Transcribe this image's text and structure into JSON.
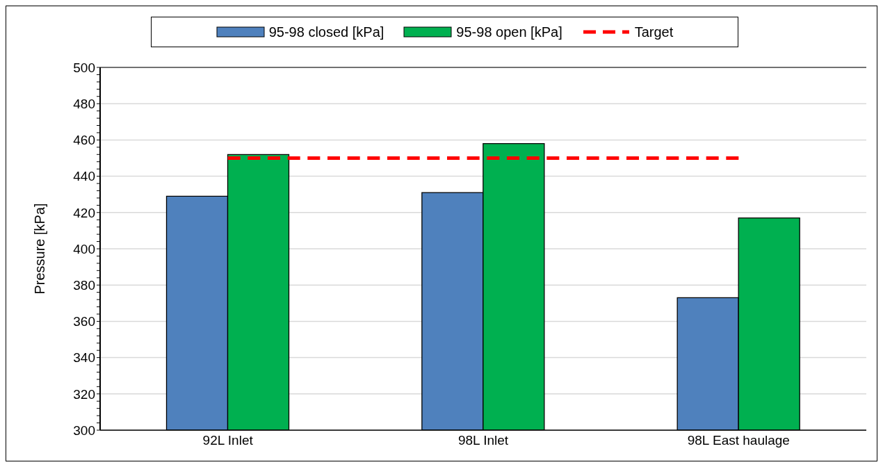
{
  "chart_data": {
    "type": "bar",
    "categories": [
      "92L Inlet",
      "98L Inlet",
      "98L East haulage"
    ],
    "ylabel": "Pressure [kPa]",
    "series": [
      {
        "name": "95-98 closed [kPa]",
        "color": "#4f81bd",
        "values": [
          429,
          431,
          373
        ]
      },
      {
        "name": "95-98 open [kPa]",
        "color": "#00b050",
        "values": [
          452,
          458,
          417
        ]
      },
      {
        "name": "Target",
        "type": "line",
        "color": "#ff0000",
        "line_style": "dashed",
        "marker": "none",
        "values": [
          450,
          450,
          450
        ]
      }
    ],
    "ylim": [
      300,
      500
    ],
    "yticks": [
      300,
      {
        "value": 304,
        "label": null
      },
      {
        "value": 308,
        "label": null
      },
      {
        "value": 312,
        "label": null
      },
      {
        "value": 316,
        "label": null
      },
      320,
      {
        "value": 324,
        "label": null
      },
      {
        "value": 328,
        "label": null
      },
      {
        "value": 332,
        "label": null
      },
      {
        "value": 336,
        "label": null
      },
      340,
      {
        "value": 344,
        "label": null
      },
      {
        "value": 348,
        "label": null
      },
      {
        "value": 352,
        "label": null
      },
      {
        "value": 356,
        "label": null
      },
      360,
      {
        "value": 364,
        "label": null
      },
      {
        "value": 368,
        "label": null
      },
      {
        "value": 372,
        "label": null
      },
      {
        "value": 376,
        "label": null
      },
      380,
      {
        "value": 384,
        "label": null
      },
      {
        "value": 388,
        "label": null
      },
      {
        "value": 392,
        "label": null
      },
      {
        "value": 396,
        "label": null
      },
      400,
      {
        "value": 404,
        "label": null
      },
      {
        "value": 408,
        "label": null
      },
      {
        "value": 412,
        "label": null
      },
      {
        "value": 416,
        "label": null
      },
      420,
      {
        "value": 424,
        "label": null
      },
      {
        "value": 428,
        "label": null
      },
      {
        "value": 432,
        "label": null
      },
      {
        "value": 436,
        "label": null
      },
      440,
      {
        "value": 444,
        "label": null
      },
      {
        "value": 448,
        "label": null
      },
      {
        "value": 452,
        "label": null
      },
      {
        "value": 456,
        "label": null
      },
      460,
      {
        "value": 464,
        "label": null
      },
      {
        "value": 468,
        "label": null
      },
      {
        "value": 472,
        "label": null
      },
      {
        "value": 476,
        "label": null
      },
      480,
      {
        "value": 484,
        "label": null
      },
      {
        "value": 488,
        "label": null
      },
      {
        "value": 492,
        "label": null
      },
      {
        "value": 496,
        "label": null
      },
      500
    ],
    "grid": "y",
    "legend": "top"
  }
}
